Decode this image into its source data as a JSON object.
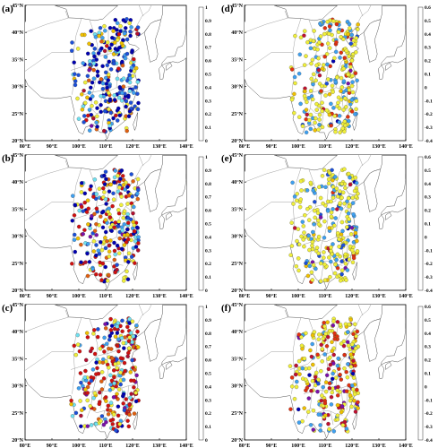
{
  "colors": {
    "scale_0_1": [
      "#0000b0",
      "#1c4fd8",
      "#3ea0f0",
      "#6fe0f0",
      "#f0ef3a",
      "#f0c000",
      "#e06010",
      "#d01010",
      "#b01030",
      "#7a10a8"
    ],
    "scale_neg": [
      "#0000b0",
      "#1c4fd8",
      "#3ea0f0",
      "#f0ef3a",
      "#f0c000",
      "#e03010",
      "#c01030",
      "#7a10a8"
    ]
  },
  "axes": {
    "lon_labels": [
      "80°E",
      "90°E",
      "100°E",
      "110°E",
      "120°E",
      "130°E",
      "140°E"
    ],
    "lat_labels": [
      "20°N",
      "25°N",
      "30°N",
      "35°N",
      "40°N",
      "45°N"
    ]
  },
  "panels": [
    {
      "label": "(a)",
      "colorbar_ticks": [
        "1",
        "0.9",
        "0.8",
        "0.7",
        "0.6",
        "0.5",
        "0.4",
        "0.3",
        "0.2",
        "0.1",
        "0"
      ],
      "scale": "scale_0_1",
      "mix": [
        0.3,
        0.2,
        0.12,
        0.1,
        0.1,
        0.06,
        0.06,
        0.04,
        0.01,
        0.01
      ]
    },
    {
      "label": "(d)",
      "colorbar_ticks": [
        "0.6",
        "0.5",
        "0.4",
        "0.3",
        "0.2",
        "0.1",
        "0",
        "-0.1",
        "-0.2",
        "-0.3",
        "-0.4"
      ],
      "scale": "scale_neg",
      "mix": [
        0.01,
        0.02,
        0.25,
        0.55,
        0.06,
        0.08,
        0.02,
        0.01
      ]
    },
    {
      "label": "(b)",
      "colorbar_ticks": [
        "1",
        "0.9",
        "0.8",
        "0.7",
        "0.6",
        "0.5",
        "0.4",
        "0.3",
        "0.2",
        "0.1",
        "0"
      ],
      "scale": "scale_0_1",
      "mix": [
        0.18,
        0.1,
        0.06,
        0.08,
        0.15,
        0.08,
        0.1,
        0.2,
        0.03,
        0.02
      ]
    },
    {
      "label": "(e)",
      "colorbar_ticks": [
        "0.6",
        "0.5",
        "0.4",
        "0.3",
        "0.2",
        "0.1",
        "0",
        "-0.1",
        "-0.2",
        "-0.3",
        "-0.4"
      ],
      "scale": "scale_neg",
      "mix": [
        0.01,
        0.03,
        0.22,
        0.66,
        0.04,
        0.02,
        0.01,
        0.01
      ]
    },
    {
      "label": "(c)",
      "colorbar_ticks": [
        "1",
        "0.9",
        "0.8",
        "0.7",
        "0.6",
        "0.5",
        "0.4",
        "0.3",
        "0.2",
        "0.1",
        "0"
      ],
      "scale": "scale_0_1",
      "mix": [
        0.06,
        0.04,
        0.06,
        0.08,
        0.14,
        0.06,
        0.1,
        0.36,
        0.04,
        0.06
      ]
    },
    {
      "label": "(f)",
      "colorbar_ticks": [
        "0.6",
        "0.5",
        "0.4",
        "0.3",
        "0.2",
        "0.1",
        "0",
        "-0.1",
        "-0.2",
        "-0.3",
        "-0.4"
      ],
      "scale": "scale_neg",
      "mix": [
        0.01,
        0.02,
        0.1,
        0.4,
        0.06,
        0.22,
        0.12,
        0.07
      ]
    }
  ]
}
